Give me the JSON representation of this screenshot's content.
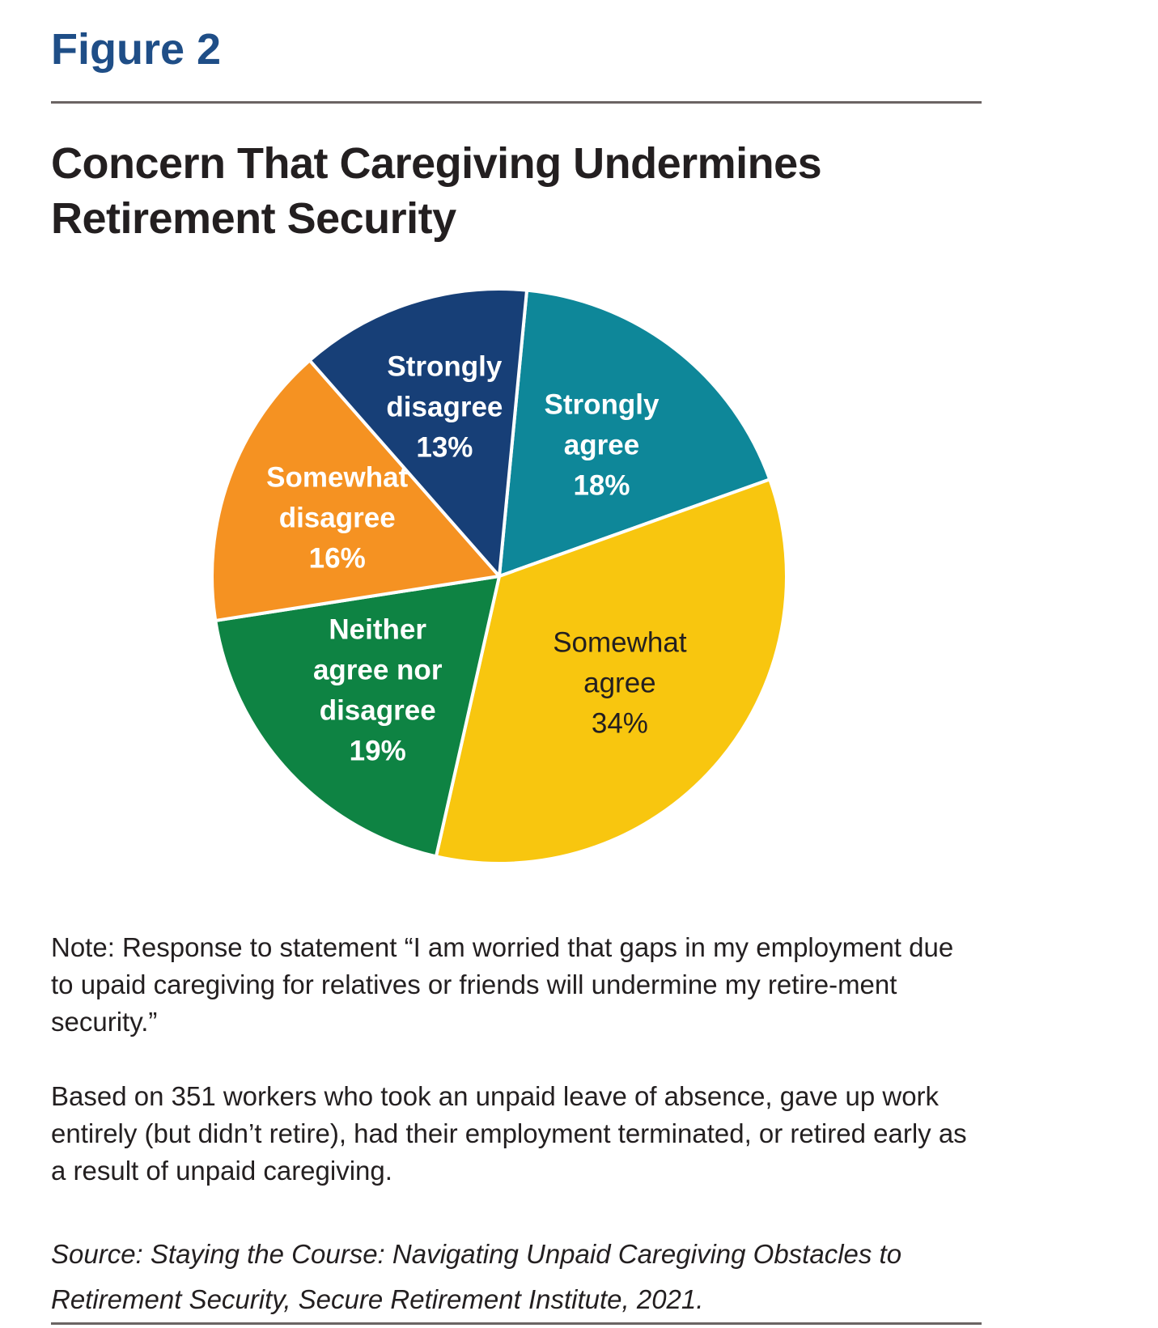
{
  "figure_label": "Figure 2",
  "chart_data": {
    "type": "pie",
    "title": "Concern That Caregiving Undermines Retirement Security",
    "slices": [
      {
        "label_lines": [
          "Strongly",
          "agree"
        ],
        "value": 18,
        "value_label": "18%",
        "color": "#0e8799",
        "label_color": "#ffffff",
        "label_bold": true
      },
      {
        "label_lines": [
          "Somewhat",
          "agree"
        ],
        "value": 34,
        "value_label": "34%",
        "color": "#f8c60f",
        "label_color": "#231f20",
        "label_bold": false
      },
      {
        "label_lines": [
          "Neither",
          "agree nor",
          "disagree"
        ],
        "value": 19,
        "value_label": "19%",
        "color": "#0e8343",
        "label_color": "#ffffff",
        "label_bold": true
      },
      {
        "label_lines": [
          "Somewhat",
          "disagree"
        ],
        "value": 16,
        "value_label": "16%",
        "color": "#f59222",
        "label_color": "#ffffff",
        "label_bold": true
      },
      {
        "label_lines": [
          "Strongly",
          "disagree"
        ],
        "value": 13,
        "value_label": "13%",
        "color": "#173f77",
        "label_color": "#ffffff",
        "label_bold": true
      }
    ]
  },
  "note_1": "Note: Response to statement “I am worried that gaps in my employment due to upaid caregiving for relatives or friends will undermine my retire-ment security.”",
  "note_2": "Based on 351 workers who took an unpaid leave of absence, gave up work entirely (but didn’t retire), had their employment terminated, or retired early as a result of unpaid caregiving.",
  "source": "Source: Staying the Course: Navigating Unpaid Caregiving Obstacles to Retirement Security, Secure Retirement Institute, 2021."
}
